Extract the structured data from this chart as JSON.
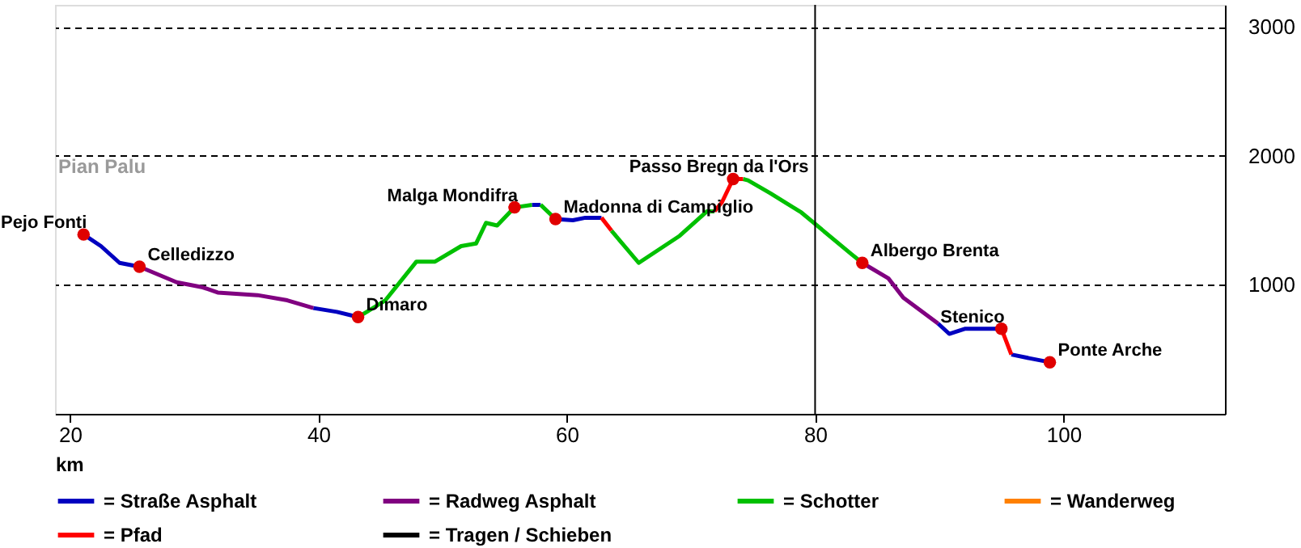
{
  "chart_data": {
    "type": "line",
    "xlabel": "km",
    "xlim": [
      18.8,
      113
    ],
    "xticks": [
      20,
      40,
      60,
      80,
      100
    ],
    "ylim": [
      0,
      3170
    ],
    "yticks": [
      1000,
      2000,
      3000
    ],
    "grid": "y",
    "legend": "bottom",
    "line_style": "solid",
    "series": [
      {
        "name": "= Straße Asphalt",
        "color": "#0000c0",
        "x": [
          21.1,
          22.5,
          24.0,
          25.6,
          null,
          39.6,
          41.5,
          43.2,
          null,
          57.2,
          57.9,
          null,
          59.1,
          60.5,
          61.5,
          62.8,
          null,
          89.9,
          90.8,
          92.1,
          94.6,
          95.0,
          null,
          95.8,
          97.3,
          98.9
        ],
        "values": [
          1390,
          1300,
          1170,
          1140,
          null,
          820,
          790,
          750,
          null,
          1620,
          1620,
          null,
          1510,
          1500,
          1520,
          1520,
          null,
          700,
          620,
          660,
          660,
          660,
          null,
          460,
          430,
          400
        ]
      },
      {
        "name": "= Radweg Asphalt",
        "color": "#800080",
        "x": [
          25.6,
          28.6,
          30.7,
          31.9,
          35.1,
          37.5,
          39.6,
          null,
          83.8,
          85.9,
          87.1,
          89.9
        ],
        "values": [
          1140,
          1020,
          980,
          940,
          920,
          880,
          820,
          null,
          1170,
          1050,
          900,
          700
        ]
      },
      {
        "name": "= Schotter",
        "color": "#00c000",
        "x": [
          43.2,
          43.9,
          45.4,
          47.9,
          49.4,
          51.5,
          52.7,
          53.5,
          54.4,
          55.8,
          57.2,
          null,
          57.9,
          59.1,
          null,
          63.6,
          65.8,
          69.1,
          71.3,
          71.9,
          null,
          74.2,
          74.6,
          76.4,
          78.9,
          82.9,
          83.8
        ],
        "values": [
          750,
          790,
          880,
          1180,
          1180,
          1300,
          1320,
          1480,
          1460,
          1600,
          1620,
          null,
          1620,
          1510,
          null,
          1420,
          1170,
          1380,
          1570,
          1570,
          null,
          1820,
          1810,
          1710,
          1560,
          1240,
          1170
        ]
      },
      {
        "name": "= Wanderweg",
        "color": "#ff8000"
      },
      {
        "name": "= Pfad",
        "color": "#ff0000",
        "x": [
          62.8,
          63.6,
          null,
          71.9,
          72.5,
          73.4,
          74.2,
          null,
          95.0,
          95.8
        ],
        "values": [
          1520,
          1420,
          null,
          1570,
          1640,
          1820,
          1820,
          null,
          660,
          460
        ]
      },
      {
        "name": "= Tragen / Schieben",
        "color": "#000000"
      },
      {
        "type": "scatter",
        "marker": "circle",
        "color": "#e00000",
        "x": [
          21.1,
          25.6,
          43.2,
          55.8,
          59.1,
          73.4,
          83.8,
          95.0,
          98.9
        ],
        "values": [
          1390,
          1140,
          750,
          1600,
          1510,
          1820,
          1170,
          660,
          400
        ]
      }
    ],
    "ref_lines": [
      {
        "axis": "x",
        "value": 80,
        "color": "#000000"
      }
    ],
    "annotations": [
      "Pian Palu",
      {
        "text": "Pejo Fonti",
        "x": 21.1,
        "y": 1390
      },
      {
        "text": "Celledizzo",
        "x": 25.6,
        "y": 1140
      },
      {
        "text": "Dimaro",
        "x": 43.2,
        "y": 750
      },
      {
        "text": "Malga Mondifra",
        "x": 55.8,
        "y": 1600
      },
      {
        "text": "Madonna di Campiglio",
        "x": 59.1,
        "y": 1510
      },
      {
        "text": "Passo Bregn da l'Ors",
        "x": 73.4,
        "y": 1820
      },
      {
        "text": "Albergo Brenta",
        "x": 83.8,
        "y": 1170
      },
      {
        "text": "Stenico",
        "x": 95.0,
        "y": 660
      },
      {
        "text": "Ponte Arche",
        "x": 98.9,
        "y": 400
      }
    ]
  }
}
